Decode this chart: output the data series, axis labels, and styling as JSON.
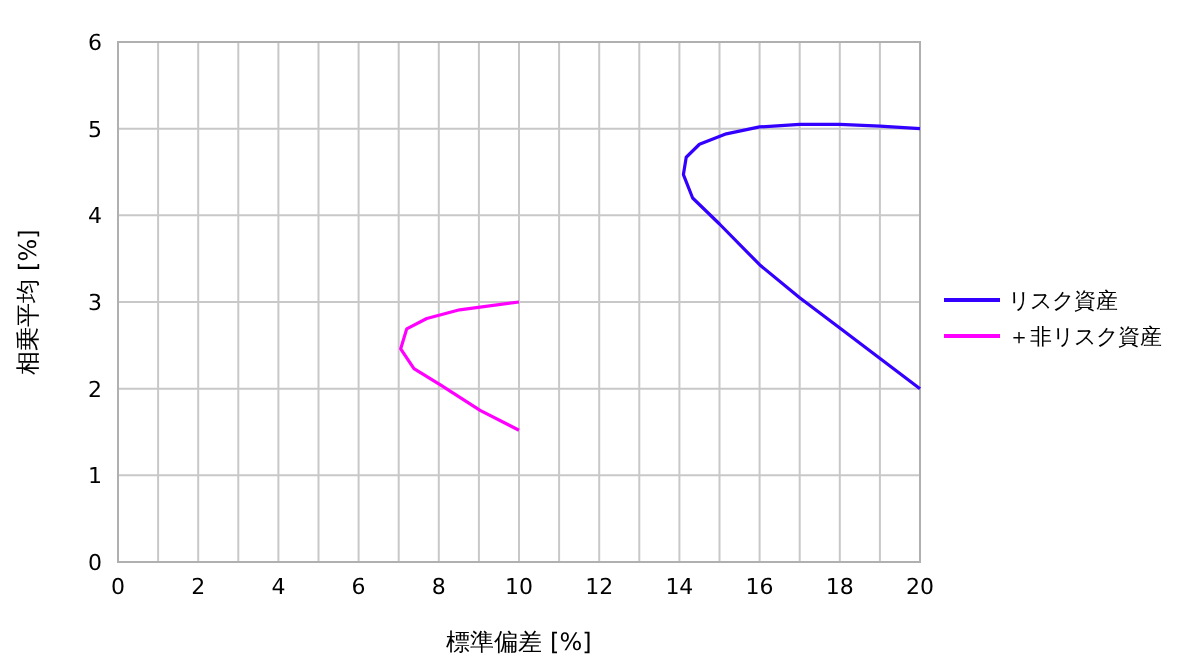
{
  "chart_data": {
    "type": "line",
    "xlabel": "標準偏差 [%]",
    "ylabel": "相乗平均 [%]",
    "xlim": [
      0,
      20
    ],
    "ylim": [
      0,
      6
    ],
    "xticks": [
      0,
      2,
      4,
      6,
      8,
      10,
      12,
      14,
      16,
      18,
      20
    ],
    "yticks": [
      0,
      1,
      2,
      3,
      4,
      5,
      6
    ],
    "grid": true,
    "legend": "right",
    "marker": "none",
    "line_style": "solid",
    "series": [
      {
        "name": "リスク資産",
        "color": "#3300ff",
        "x": [
          20,
          18,
          17,
          16,
          15,
          14.33,
          14.1,
          14.17,
          14.5,
          15.17,
          16,
          17,
          18,
          19,
          20
        ],
        "values": [
          2,
          2.7,
          3.05,
          3.43,
          3.9,
          4.2,
          4.47,
          4.67,
          4.82,
          4.94,
          5.02,
          5.05,
          5.05,
          5.03,
          5
        ]
      },
      {
        "name": "＋非リスク資産",
        "color": "#ff00ff",
        "x": [
          10,
          9.03,
          8.05,
          7.38,
          7.05,
          7.2,
          7.7,
          8.52,
          10
        ],
        "values": [
          1.52,
          1.75,
          2.04,
          2.23,
          2.46,
          2.69,
          2.81,
          2.91,
          3
        ]
      }
    ]
  }
}
